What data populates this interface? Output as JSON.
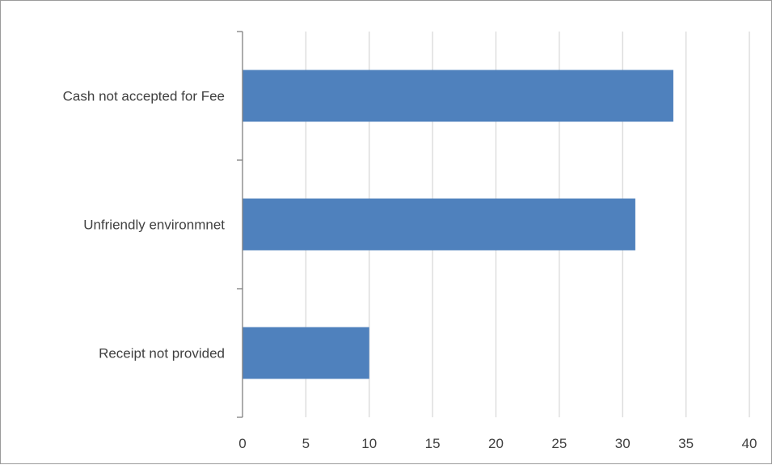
{
  "chart_data": {
    "type": "bar",
    "orientation": "horizontal",
    "categories": [
      "Cash not accepted for Fee",
      "Unfriendly environmnet",
      "Receipt not provided"
    ],
    "values": [
      34,
      31,
      10
    ],
    "xlim": [
      0,
      40
    ],
    "x_ticks": [
      "0",
      "5",
      "10",
      "15",
      "20",
      "25",
      "30",
      "35",
      "40"
    ],
    "grid": "vertical",
    "bar_color": "#4f81bd",
    "title": "",
    "xlabel": "",
    "ylabel": ""
  }
}
